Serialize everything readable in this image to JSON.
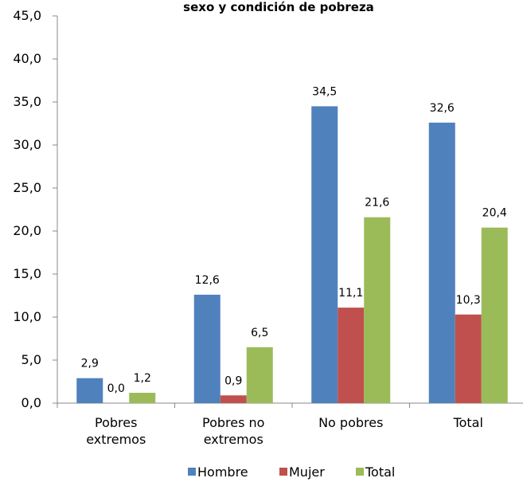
{
  "chart_data": {
    "type": "bar",
    "title": "sexo y condición de pobreza",
    "xlabel": "",
    "ylabel": "",
    "ylim": [
      0,
      45
    ],
    "y_ticks": [
      "0,0",
      "5,0",
      "10,0",
      "15,0",
      "20,0",
      "25,0",
      "30,0",
      "35,0",
      "40,0",
      "45,0"
    ],
    "categories": [
      [
        "Pobres",
        "extremos"
      ],
      [
        "Pobres no",
        "extremos"
      ],
      [
        "No pobres"
      ],
      [
        "Total"
      ]
    ],
    "series": [
      {
        "name": "Hombre",
        "color": "#4f81bd",
        "values": [
          2.9,
          12.6,
          34.5,
          32.6
        ],
        "labels": [
          "2,9",
          "12,6",
          "34,5",
          "32,6"
        ]
      },
      {
        "name": "Mujer",
        "color": "#c0504d",
        "values": [
          0.0,
          0.9,
          11.1,
          10.3
        ],
        "labels": [
          "0,0",
          "0,9",
          "11,1",
          "10,3"
        ]
      },
      {
        "name": "Total",
        "color": "#9bbb59",
        "values": [
          1.2,
          6.5,
          21.6,
          20.4
        ],
        "labels": [
          "1,2",
          "6,5",
          "21,6",
          "20,4"
        ]
      }
    ],
    "grid": false,
    "legend_position": "bottom"
  }
}
